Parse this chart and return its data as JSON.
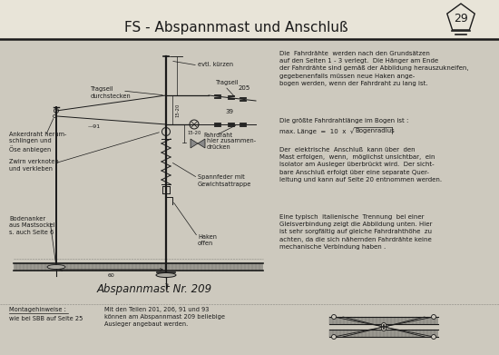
{
  "title": "FS - Abspannmast und Anschluß",
  "page_num": "29",
  "bg_light": "#e8e4d8",
  "bg_main": "#cdc9be",
  "text_color": "#1a1a1a",
  "title_fontsize": 11,
  "text_blocks": [
    "Die  Fahrdrähte  werden nach den Grundsätzen\nauf den Seiten 1 - 3 verlegt.  Die Hänger am Ende\nder Fahrdrähte sind gemäß der Abbildung herauszukneifen,\ngegebenenfalls müssen neue Haken ange-\nbogen werden, wenn der Fahrdraht zu lang ist.",
    "Die größte Fahrdrahtlänge im Bogen ist :",
    "max. Länge  =  10  x  ∛Bogenradius",
    "Der  elektrische  Anschluß  kann über  den\nMast erfolgen,  wenn,  möglichst unsichtbar,  ein\nIsolator am Ausleger überbrückt wird.  Der sicht-\nbare Anschluß erfolgt über eine separate Quer-\nleitung und kann auf Seite 20 entnommen werden.",
    "Eine typisch  italienische  Trennung  bei einer\nGleisverbindung zeigt die Abbildung unten. Hier\nist sehr sorgfältig auf gleiche Fahrdrahthöhe  zu\nachten, da die sich nähernden Fahrdrähte keine\nmechanische Verbindung haben ."
  ],
  "bottom_left": "Montagehinweise :\nwie bei SBB auf Seite 25",
  "bottom_mid": "Mit den Teilen 201, 206, 91 und 93\nkönnen am Abspannmast 209 beliebige\nAusleger angebaut werden.",
  "diagram_label": "Abspannmast Nr. 209"
}
